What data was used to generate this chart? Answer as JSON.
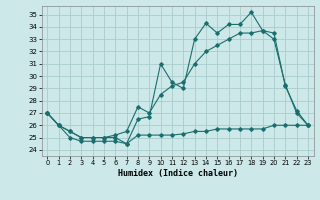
{
  "xlabel": "Humidex (Indice chaleur)",
  "background_color": "#cce8e8",
  "grid_color": "#aacccc",
  "line_color": "#1a6e6e",
  "xlim": [
    -0.5,
    23.5
  ],
  "ylim": [
    23.5,
    35.7
  ],
  "yticks": [
    24,
    25,
    26,
    27,
    28,
    29,
    30,
    31,
    32,
    33,
    34,
    35
  ],
  "xticks": [
    0,
    1,
    2,
    3,
    4,
    5,
    6,
    7,
    8,
    9,
    10,
    11,
    12,
    13,
    14,
    15,
    16,
    17,
    18,
    19,
    20,
    21,
    22,
    23
  ],
  "series1_x": [
    0,
    1,
    2,
    3,
    4,
    5,
    6,
    7,
    8,
    9,
    10,
    11,
    12,
    13,
    14,
    15,
    16,
    17,
    18,
    19,
    20,
    21,
    22,
    23
  ],
  "series1_y": [
    27.0,
    26.0,
    25.0,
    24.7,
    24.7,
    24.7,
    24.7,
    24.5,
    26.5,
    26.7,
    31.0,
    29.5,
    29.0,
    33.0,
    34.3,
    33.5,
    34.2,
    34.2,
    35.2,
    33.7,
    33.0,
    29.3,
    27.0,
    26.0
  ],
  "series2_x": [
    0,
    1,
    2,
    3,
    4,
    5,
    6,
    7,
    8,
    9,
    10,
    11,
    12,
    13,
    14,
    15,
    16,
    17,
    18,
    19,
    20,
    21,
    22,
    23
  ],
  "series2_y": [
    27.0,
    26.0,
    25.5,
    25.0,
    25.0,
    25.0,
    25.0,
    24.5,
    25.2,
    25.2,
    25.2,
    25.2,
    25.3,
    25.5,
    25.5,
    25.7,
    25.7,
    25.7,
    25.7,
    25.7,
    26.0,
    26.0,
    26.0,
    26.0
  ],
  "series3_x": [
    0,
    1,
    2,
    3,
    4,
    5,
    6,
    7,
    8,
    9,
    10,
    11,
    12,
    13,
    14,
    15,
    16,
    17,
    18,
    19,
    20,
    21,
    22,
    23
  ],
  "series3_y": [
    27.0,
    26.0,
    25.5,
    25.0,
    25.0,
    25.0,
    25.2,
    25.5,
    27.5,
    27.0,
    28.5,
    29.2,
    29.5,
    31.0,
    32.0,
    32.5,
    33.0,
    33.5,
    33.5,
    33.7,
    33.5,
    29.2,
    27.2,
    26.0
  ]
}
